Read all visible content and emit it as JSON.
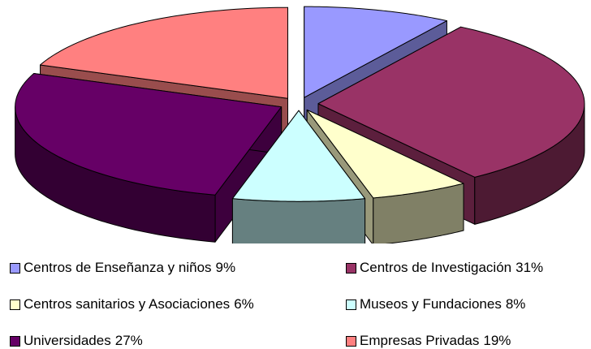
{
  "chart_data": {
    "type": "pie3d",
    "categories": [
      "Centros de Enseñanza y niños",
      "Centros de Investigación",
      "Centros sanitarios y Asociaciones",
      "Museos y Fundaciones",
      "Universidades",
      "Empresas Privadas"
    ],
    "values": [
      9,
      31,
      6,
      8,
      27,
      19
    ],
    "value_labels": [
      "9%",
      "31%",
      "6%",
      "8%",
      "27%",
      "19%"
    ],
    "colors": [
      "#9999ff",
      "#993366",
      "#ffffcc",
      "#ccffff",
      "#660066",
      "#ff8080"
    ],
    "legend": "bottom"
  }
}
